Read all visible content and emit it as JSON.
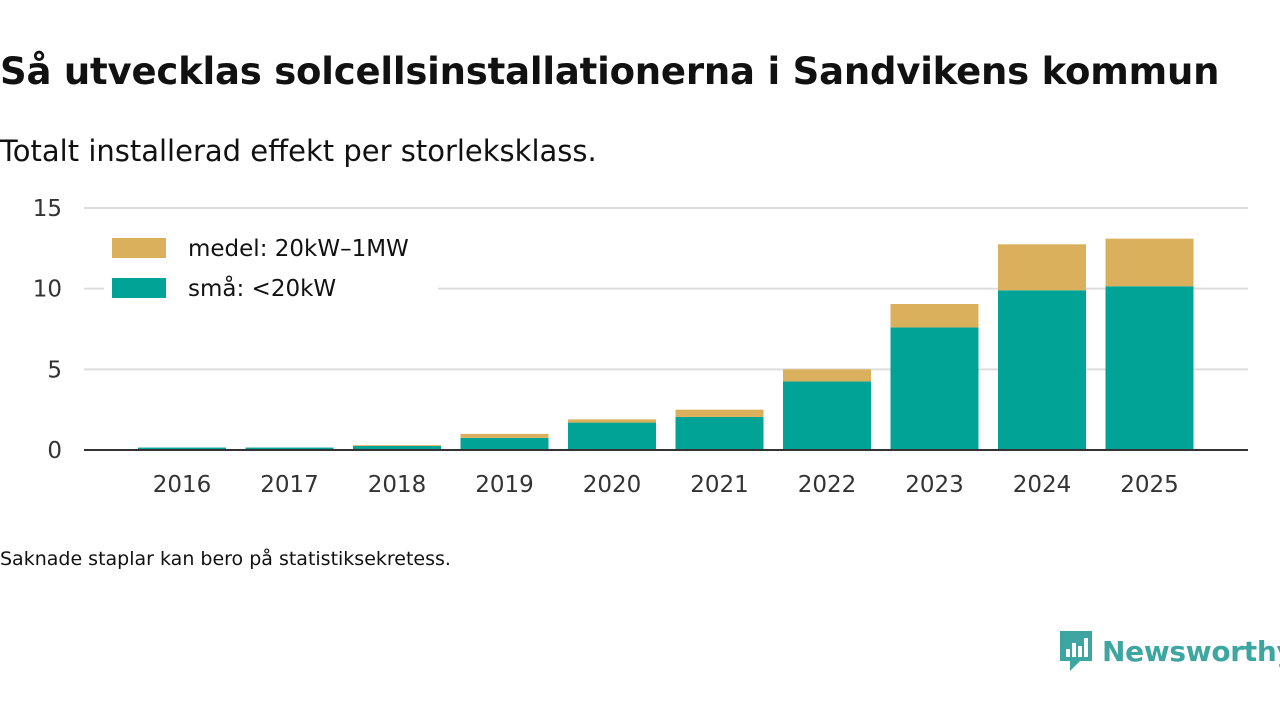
{
  "title": "Så utvecklas solcellsinstallationerna i Sandvikens kommun",
  "subtitle": "Totalt installerad effekt per storleksklass.",
  "note": "Saknade staplar kan bero på statistiksekretess.",
  "brand": {
    "name": "Newsworthy",
    "color": "#3ea6a0"
  },
  "chart_data": {
    "type": "bar",
    "stacked": true,
    "categories": [
      "2016",
      "2017",
      "2018",
      "2019",
      "2020",
      "2021",
      "2022",
      "2023",
      "2024",
      "2025"
    ],
    "series": [
      {
        "name": "små: <20kW",
        "color": "#00a396",
        "values": [
          0.15,
          0.15,
          0.25,
          0.75,
          1.7,
          2.05,
          4.25,
          7.6,
          9.9,
          10.15
        ]
      },
      {
        "name": "medel: 20kW–1MW",
        "color": "#dbb05c",
        "values": [
          0.0,
          0.0,
          0.05,
          0.25,
          0.2,
          0.45,
          0.75,
          1.45,
          2.85,
          2.95
        ]
      }
    ],
    "yticks": [
      0,
      5,
      10,
      15
    ],
    "ylim": [
      0,
      15
    ],
    "xlabel": "",
    "ylabel": "",
    "legend": "top-left",
    "grid": true
  }
}
